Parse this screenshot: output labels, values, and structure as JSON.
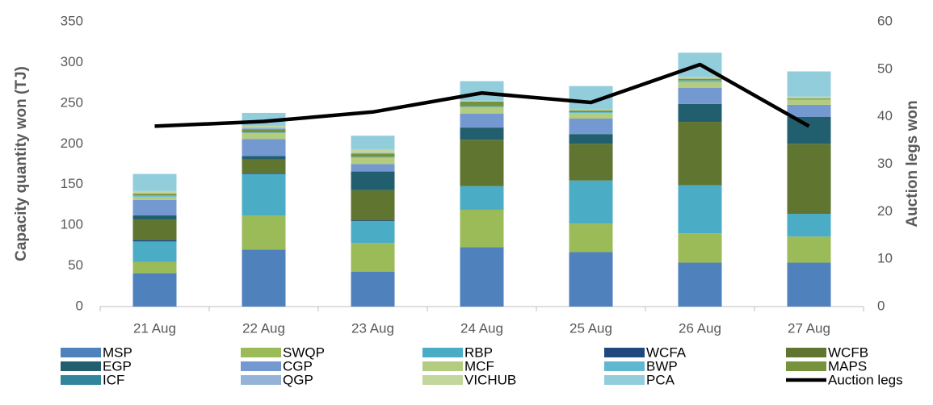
{
  "chart_data": {
    "type": "bar",
    "stacked": true,
    "y_label": "Capacity quantity won (TJ)",
    "y2_label": "Auction legs won",
    "categories": [
      "21 Aug",
      "22 Aug",
      "23 Aug",
      "24 Aug",
      "25 Aug",
      "26 Aug",
      "27 Aug"
    ],
    "ylim": [
      0,
      350
    ],
    "yticks": [
      0,
      50,
      100,
      150,
      200,
      250,
      300,
      350
    ],
    "y2lim": [
      0,
      60
    ],
    "y2ticks": [
      0,
      10,
      20,
      30,
      40,
      50,
      60
    ],
    "series": [
      {
        "name": "MSP",
        "color": "#4f81bd",
        "values": [
          41,
          70,
          43,
          73,
          67,
          54,
          54
        ]
      },
      {
        "name": "SWQP",
        "color": "#9bbb59",
        "values": [
          14,
          42,
          35,
          46,
          35,
          36,
          32
        ]
      },
      {
        "name": "RBP",
        "color": "#4bacc6",
        "values": [
          25,
          51,
          27,
          29,
          53,
          59,
          28
        ]
      },
      {
        "name": "WCFA",
        "color": "#1f497d",
        "values": [
          2,
          1,
          1,
          0,
          0,
          0,
          0
        ]
      },
      {
        "name": "WCFB",
        "color": "#5f7530",
        "values": [
          25,
          17,
          37,
          57,
          45,
          78,
          86
        ]
      },
      {
        "name": "EGP",
        "color": "#215f6e",
        "values": [
          5,
          4,
          23,
          15,
          12,
          22,
          33
        ]
      },
      {
        "name": "CGP",
        "color": "#7399d0",
        "values": [
          19,
          21,
          9,
          17,
          19,
          20,
          15
        ]
      },
      {
        "name": "MCF",
        "color": "#b3cc80",
        "values": [
          4,
          7,
          8,
          8,
          7,
          7,
          6
        ]
      },
      {
        "name": "BWP",
        "color": "#5fb8d0",
        "values": [
          2,
          1,
          1,
          1,
          1,
          2,
          1
        ]
      },
      {
        "name": "MAPS",
        "color": "#76923c",
        "values": [
          2,
          4,
          4,
          6,
          2,
          2,
          1
        ]
      },
      {
        "name": "ICF",
        "color": "#31859c",
        "values": [
          0,
          0,
          0,
          0,
          0,
          0,
          0
        ]
      },
      {
        "name": "QGP",
        "color": "#95b3d7",
        "values": [
          0,
          2,
          1,
          0,
          0,
          0,
          0
        ]
      },
      {
        "name": "VICHUB",
        "color": "#c3d69b",
        "values": [
          3,
          2,
          4,
          1,
          1,
          2,
          2
        ]
      },
      {
        "name": "PCA",
        "color": "#92cddc",
        "values": [
          21,
          16,
          17,
          24,
          29,
          30,
          31
        ]
      },
      {
        "name": "Auction legs",
        "type": "line",
        "axis": "y2",
        "color": "#000000",
        "values": [
          38,
          39,
          41,
          45,
          43,
          51,
          38
        ]
      }
    ]
  }
}
